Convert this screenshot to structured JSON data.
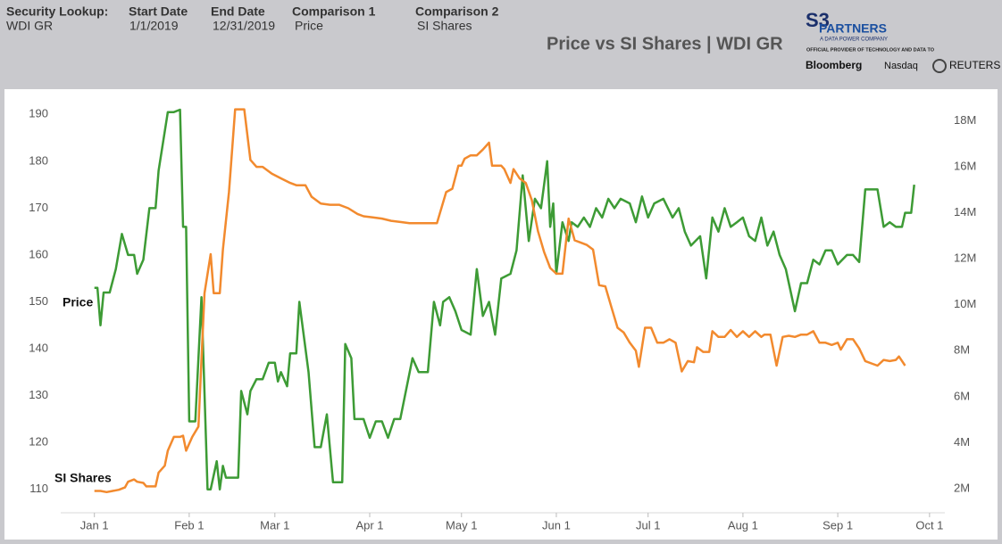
{
  "header": {
    "fields": [
      {
        "label": "Security Lookup:",
        "value": "WDI GR"
      },
      {
        "label": "Start Date",
        "value": "1/1/2019"
      },
      {
        "label": "End Date",
        "value": "12/31/2019"
      },
      {
        "label": "Comparison 1",
        "value": "Price"
      },
      {
        "label": "Comparison 2",
        "value": "SI Shares"
      }
    ],
    "logo": {
      "brand": "S3",
      "name": "PARTNERS",
      "tagline": "A DATA POWER COMPANY",
      "provider": "OFFICIAL PROVIDER OF TECHNOLOGY AND DATA TO",
      "partners": [
        "Bloomberg",
        "Nasdaq",
        "REUTERS"
      ]
    }
  },
  "chart_data": {
    "type": "line",
    "title": "Price vs SI Shares | WDI GR",
    "xlim": [
      "2018-12-21",
      "2019-10-06"
    ],
    "xticks": [
      {
        "value": "2019-01-01",
        "label": "Jan 1"
      },
      {
        "value": "2019-02-01",
        "label": "Feb 1"
      },
      {
        "value": "2019-03-01",
        "label": "Mar 1"
      },
      {
        "value": "2019-04-01",
        "label": "Apr 1"
      },
      {
        "value": "2019-05-01",
        "label": "May 1"
      },
      {
        "value": "2019-06-01",
        "label": "Jun 1"
      },
      {
        "value": "2019-07-01",
        "label": "Jul 1"
      },
      {
        "value": "2019-08-01",
        "label": "Aug 1"
      },
      {
        "value": "2019-09-01",
        "label": "Sep 1"
      },
      {
        "value": "2019-10-01",
        "label": "Oct 1"
      }
    ],
    "ylim": [
      105,
      195
    ],
    "yticks": [
      110,
      120,
      130,
      140,
      150,
      160,
      170,
      180,
      190
    ],
    "y2lim": [
      950000,
      19300000
    ],
    "y2ticks": [
      {
        "value": 2000000,
        "label": "2M"
      },
      {
        "value": 4000000,
        "label": "4M"
      },
      {
        "value": 6000000,
        "label": "6M"
      },
      {
        "value": 8000000,
        "label": "8M"
      },
      {
        "value": 10000000,
        "label": "10M"
      },
      {
        "value": 12000000,
        "label": "12M"
      },
      {
        "value": 14000000,
        "label": "14M"
      },
      {
        "value": 16000000,
        "label": "16M"
      },
      {
        "value": 18000000,
        "label": "18M"
      }
    ],
    "grid": false,
    "series": [
      {
        "name": "Price",
        "color": "#3d9b35",
        "axis": "y",
        "x": [
          "2019-01-01",
          "2019-01-02",
          "2019-01-03",
          "2019-01-04",
          "2019-01-06",
          "2019-01-08",
          "2019-01-10",
          "2019-01-12",
          "2019-01-14",
          "2019-01-15",
          "2019-01-17",
          "2019-01-19",
          "2019-01-21",
          "2019-01-22",
          "2019-01-25",
          "2019-01-27",
          "2019-01-29",
          "2019-01-30",
          "2019-01-31",
          "2019-02-01",
          "2019-02-03",
          "2019-02-05",
          "2019-02-07",
          "2019-02-08",
          "2019-02-10",
          "2019-02-11",
          "2019-02-12",
          "2019-02-13",
          "2019-02-17",
          "2019-02-18",
          "2019-02-20",
          "2019-02-21",
          "2019-02-23",
          "2019-02-25",
          "2019-02-27",
          "2019-03-01",
          "2019-03-02",
          "2019-03-03",
          "2019-03-05",
          "2019-03-06",
          "2019-03-08",
          "2019-03-09",
          "2019-03-12",
          "2019-03-14",
          "2019-03-16",
          "2019-03-18",
          "2019-03-20",
          "2019-03-23",
          "2019-03-24",
          "2019-03-26",
          "2019-03-27",
          "2019-03-30",
          "2019-04-01",
          "2019-04-03",
          "2019-04-05",
          "2019-04-07",
          "2019-04-09",
          "2019-04-11",
          "2019-04-15",
          "2019-04-17",
          "2019-04-20",
          "2019-04-22",
          "2019-04-24",
          "2019-04-25",
          "2019-04-27",
          "2019-04-29",
          "2019-05-01",
          "2019-05-04",
          "2019-05-06",
          "2019-05-08",
          "2019-05-10",
          "2019-05-12",
          "2019-05-14",
          "2019-05-17",
          "2019-05-19",
          "2019-05-21",
          "2019-05-23",
          "2019-05-25",
          "2019-05-27",
          "2019-05-29",
          "2019-05-30",
          "2019-05-31",
          "2019-06-01",
          "2019-06-03",
          "2019-06-05",
          "2019-06-06",
          "2019-06-08",
          "2019-06-10",
          "2019-06-12",
          "2019-06-14",
          "2019-06-16",
          "2019-06-18",
          "2019-06-20",
          "2019-06-22",
          "2019-06-25",
          "2019-06-27",
          "2019-06-29",
          "2019-07-01",
          "2019-07-03",
          "2019-07-06",
          "2019-07-09",
          "2019-07-11",
          "2019-07-13",
          "2019-07-15",
          "2019-07-18",
          "2019-07-20",
          "2019-07-22",
          "2019-07-24",
          "2019-07-26",
          "2019-07-28",
          "2019-07-30",
          "2019-08-01",
          "2019-08-03",
          "2019-08-05",
          "2019-08-07",
          "2019-08-09",
          "2019-08-11",
          "2019-08-13",
          "2019-08-15",
          "2019-08-17",
          "2019-08-18",
          "2019-08-20",
          "2019-08-22",
          "2019-08-24",
          "2019-08-26",
          "2019-08-28",
          "2019-08-30",
          "2019-09-01",
          "2019-09-04",
          "2019-09-06",
          "2019-09-08",
          "2019-09-10",
          "2019-09-14",
          "2019-09-16",
          "2019-09-18",
          "2019-09-20",
          "2019-09-22",
          "2019-09-23",
          "2019-09-25",
          "2019-09-26"
        ],
        "values": [
          153,
          153,
          145,
          152,
          152,
          157,
          164.5,
          160,
          160,
          156,
          159,
          170,
          170,
          178,
          190.5,
          190.5,
          191,
          166,
          166,
          124.5,
          124.5,
          151,
          110,
          110,
          116,
          110,
          115,
          112.5,
          112.5,
          131,
          126,
          131,
          133.5,
          133.5,
          137,
          137,
          133,
          135,
          132,
          139,
          139,
          150,
          135,
          119,
          119,
          126,
          111.5,
          111.5,
          141,
          138,
          125,
          125,
          121,
          124.5,
          124.5,
          121,
          125,
          125,
          138,
          135,
          135,
          150,
          145,
          150,
          151,
          148,
          144,
          143,
          157,
          147,
          150,
          143,
          155,
          156,
          161,
          177,
          163,
          172,
          170,
          180,
          166,
          171,
          156,
          167,
          163,
          167,
          166,
          168,
          166,
          170,
          168,
          172,
          170,
          172,
          171,
          167,
          172.5,
          168,
          171,
          172,
          168,
          170,
          165,
          162,
          164,
          155,
          168,
          165,
          170,
          166,
          167,
          168,
          164,
          163,
          168,
          162,
          165,
          160,
          157,
          151,
          148,
          154,
          154,
          159,
          158,
          161,
          161,
          158,
          160,
          160,
          158.5,
          174,
          174,
          166,
          167,
          166,
          166,
          169,
          169,
          175
        ]
      },
      {
        "name": "SI Shares",
        "color": "#f28a2e",
        "axis": "y2",
        "x": [
          "2019-01-01",
          "2019-01-03",
          "2019-01-05",
          "2019-01-07",
          "2019-01-09",
          "2019-01-11",
          "2019-01-12",
          "2019-01-14",
          "2019-01-15",
          "2019-01-17",
          "2019-01-18",
          "2019-01-20",
          "2019-01-21",
          "2019-01-22",
          "2019-01-24",
          "2019-01-25",
          "2019-01-27",
          "2019-01-29",
          "2019-01-30",
          "2019-01-31",
          "2019-02-02",
          "2019-02-04",
          "2019-02-06",
          "2019-02-08",
          "2019-02-09",
          "2019-02-11",
          "2019-02-12",
          "2019-02-14",
          "2019-02-16",
          "2019-02-19",
          "2019-02-21",
          "2019-02-23",
          "2019-02-25",
          "2019-02-28",
          "2019-03-03",
          "2019-03-06",
          "2019-03-08",
          "2019-03-11",
          "2019-03-13",
          "2019-03-16",
          "2019-03-19",
          "2019-03-22",
          "2019-03-25",
          "2019-03-28",
          "2019-03-30",
          "2019-04-02",
          "2019-04-05",
          "2019-04-08",
          "2019-04-11",
          "2019-04-14",
          "2019-04-17",
          "2019-04-20",
          "2019-04-23",
          "2019-04-26",
          "2019-04-28",
          "2019-04-30",
          "2019-05-01",
          "2019-05-02",
          "2019-05-04",
          "2019-05-06",
          "2019-05-08",
          "2019-05-10",
          "2019-05-11",
          "2019-05-14",
          "2019-05-15",
          "2019-05-17",
          "2019-05-18",
          "2019-05-20",
          "2019-05-22",
          "2019-05-24",
          "2019-05-26",
          "2019-05-28",
          "2019-05-30",
          "2019-06-01",
          "2019-06-03",
          "2019-06-05",
          "2019-06-07",
          "2019-06-09",
          "2019-06-11",
          "2019-06-13",
          "2019-06-15",
          "2019-06-17",
          "2019-06-19",
          "2019-06-21",
          "2019-06-23",
          "2019-06-25",
          "2019-06-27",
          "2019-06-28",
          "2019-06-30",
          "2019-07-02",
          "2019-07-04",
          "2019-07-06",
          "2019-07-08",
          "2019-07-10",
          "2019-07-12",
          "2019-07-14",
          "2019-07-16",
          "2019-07-17",
          "2019-07-19",
          "2019-07-21",
          "2019-07-22",
          "2019-07-24",
          "2019-07-26",
          "2019-07-28",
          "2019-07-30",
          "2019-08-01",
          "2019-08-03",
          "2019-08-05",
          "2019-08-07",
          "2019-08-08",
          "2019-08-10",
          "2019-08-12",
          "2019-08-14",
          "2019-08-16",
          "2019-08-18",
          "2019-08-20",
          "2019-08-22",
          "2019-08-24",
          "2019-08-26",
          "2019-08-28",
          "2019-08-30",
          "2019-09-01",
          "2019-09-02",
          "2019-09-04",
          "2019-09-06",
          "2019-09-08",
          "2019-09-10",
          "2019-09-12",
          "2019-09-14",
          "2019-09-16",
          "2019-09-18",
          "2019-09-20",
          "2019-09-21",
          "2019-09-23"
        ],
        "values": [
          1900000,
          1900000,
          1850000,
          1900000,
          1950000,
          2050000,
          2300000,
          2400000,
          2300000,
          2250000,
          2100000,
          2100000,
          2100000,
          2700000,
          3000000,
          3650000,
          4250000,
          4250000,
          4300000,
          3650000,
          4250000,
          4700000,
          10500000,
          12200000,
          10500000,
          10500000,
          12400000,
          14900000,
          18500000,
          18500000,
          16300000,
          16000000,
          16000000,
          15700000,
          15500000,
          15300000,
          15200000,
          15200000,
          14700000,
          14400000,
          14350000,
          14350000,
          14200000,
          13950000,
          13850000,
          13800000,
          13750000,
          13650000,
          13600000,
          13550000,
          13550000,
          13550000,
          13550000,
          14900000,
          15050000,
          16050000,
          16050000,
          16350000,
          16500000,
          16500000,
          16750000,
          17050000,
          16050000,
          16050000,
          15900000,
          15300000,
          15900000,
          15500000,
          15300000,
          14550000,
          13200000,
          12300000,
          11600000,
          11350000,
          11350000,
          13750000,
          12800000,
          12700000,
          12600000,
          12400000,
          10850000,
          10800000,
          9900000,
          9000000,
          8800000,
          8350000,
          8000000,
          7300000,
          9000000,
          9000000,
          8350000,
          8350000,
          8500000,
          8350000,
          7100000,
          7550000,
          7500000,
          8150000,
          7950000,
          7950000,
          8850000,
          8600000,
          8600000,
          8900000,
          8600000,
          8850000,
          8600000,
          8850000,
          8600000,
          8700000,
          8700000,
          7350000,
          8600000,
          8650000,
          8600000,
          8700000,
          8700000,
          8850000,
          8350000,
          8350000,
          8250000,
          8350000,
          8050000,
          8500000,
          8500000,
          8100000,
          7550000,
          7450000,
          7350000,
          7600000,
          7550000,
          7600000,
          7750000,
          7350000
        ]
      }
    ]
  }
}
